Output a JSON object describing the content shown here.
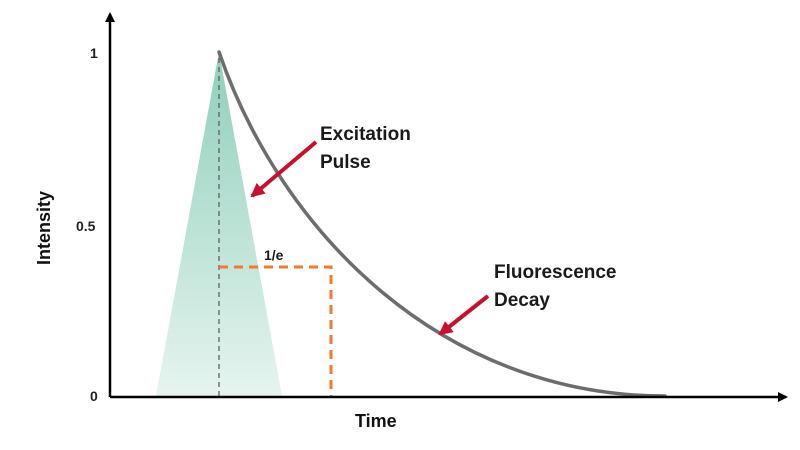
{
  "axes": {
    "x_title": "Time",
    "y_title": "Intensity",
    "y_ticks": [
      "1",
      "0.5",
      "0"
    ]
  },
  "annotations": {
    "excitation": [
      "Excitation",
      "Pulse"
    ],
    "fluorescence": [
      "Fluorescence",
      "Decay"
    ],
    "lifetime_marker": "1/e"
  },
  "colors": {
    "axis": "#000000",
    "decay_curve": "#6d6d6d",
    "pulse_top": "#8fcfbb",
    "pulse_bottom": "#e6f4ef",
    "lifetime_marker": "#f07a2e",
    "arrow": "#c8102e",
    "guide_line": "#555555"
  }
}
